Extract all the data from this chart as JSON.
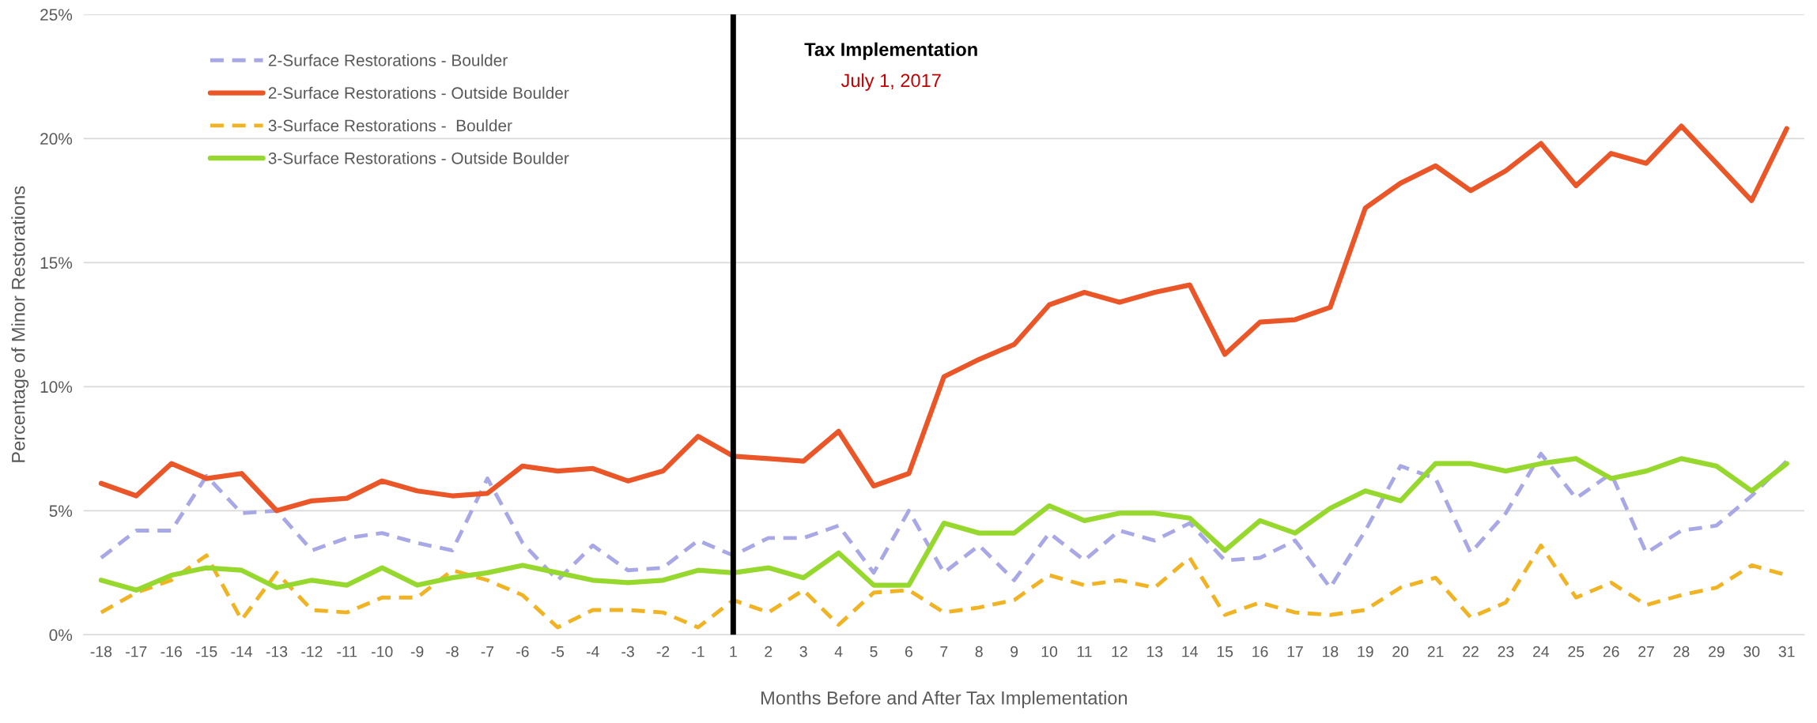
{
  "chart_data": {
    "type": "line",
    "xlabel": "Months Before and After Tax Implementation",
    "ylabel": "Percentage of Minor Restorations",
    "categories": [
      "-18",
      "-17",
      "-16",
      "-15",
      "-14",
      "-13",
      "-12",
      "-11",
      "-10",
      "-9",
      "-8",
      "-7",
      "-6",
      "-5",
      "-4",
      "-3",
      "-2",
      "-1",
      "1",
      "2",
      "3",
      "4",
      "5",
      "6",
      "7",
      "8",
      "9",
      "10",
      "11",
      "12",
      "13",
      "14",
      "15",
      "16",
      "17",
      "18",
      "19",
      "20",
      "21",
      "22",
      "23",
      "24",
      "25",
      "26",
      "27",
      "28",
      "29",
      "30",
      "31"
    ],
    "series": [
      {
        "name": "2-Surface Restorations - Boulder",
        "color": "#a9a8e6",
        "line_style": "dashed",
        "values": [
          3.1,
          4.2,
          4.2,
          6.4,
          4.9,
          5.0,
          3.4,
          3.9,
          4.1,
          3.7,
          3.4,
          6.3,
          3.7,
          2.2,
          3.6,
          2.6,
          2.7,
          3.8,
          3.2,
          3.9,
          3.9,
          4.4,
          2.5,
          5.0,
          2.5,
          3.6,
          2.2,
          4.1,
          3.0,
          4.2,
          3.8,
          4.5,
          3.0,
          3.1,
          3.8,
          1.9,
          4.2,
          6.8,
          6.3,
          3.3,
          4.9,
          7.3,
          5.5,
          6.5,
          3.3,
          4.2,
          4.4,
          5.6,
          7.0
        ]
      },
      {
        "name": "2-Surface Restorations - Outside Boulder",
        "color": "#eb5628",
        "line_style": "solid",
        "values": [
          6.1,
          5.6,
          6.9,
          6.3,
          6.5,
          5.0,
          5.4,
          5.5,
          6.2,
          5.8,
          5.6,
          5.7,
          6.8,
          6.6,
          6.7,
          6.2,
          6.6,
          8.0,
          7.2,
          7.1,
          7.0,
          8.2,
          6.0,
          6.5,
          10.4,
          11.1,
          11.7,
          13.3,
          13.8,
          13.4,
          13.8,
          14.1,
          11.3,
          12.6,
          12.7,
          13.2,
          17.2,
          18.2,
          18.9,
          17.9,
          18.7,
          19.8,
          18.1,
          19.4,
          19.0,
          20.5,
          19.0,
          17.5,
          20.4
        ]
      },
      {
        "name": "3-Surface Restorations -  Boulder",
        "color": "#f0b323",
        "line_style": "dashed",
        "values": [
          0.9,
          1.7,
          2.2,
          3.2,
          0.6,
          2.5,
          1.0,
          0.9,
          1.5,
          1.5,
          2.6,
          2.2,
          1.6,
          0.3,
          1.0,
          1.0,
          0.9,
          0.3,
          1.4,
          0.9,
          1.8,
          0.4,
          1.7,
          1.8,
          0.9,
          1.1,
          1.4,
          2.4,
          2.0,
          2.2,
          1.9,
          3.1,
          0.8,
          1.3,
          0.9,
          0.8,
          1.0,
          1.9,
          2.3,
          0.7,
          1.3,
          3.6,
          1.5,
          2.1,
          1.2,
          1.6,
          1.9,
          2.8,
          2.4
        ]
      },
      {
        "name": "3-Surface Restorations - Outside Boulder",
        "color": "#97d82e",
        "line_style": "solid",
        "values": [
          2.2,
          1.8,
          2.4,
          2.7,
          2.6,
          1.9,
          2.2,
          2.0,
          2.7,
          2.0,
          2.3,
          2.5,
          2.8,
          2.5,
          2.2,
          2.1,
          2.2,
          2.6,
          2.5,
          2.7,
          2.3,
          3.3,
          2.0,
          2.0,
          4.5,
          4.1,
          4.1,
          5.2,
          4.6,
          4.9,
          4.9,
          4.7,
          3.4,
          4.6,
          4.1,
          5.1,
          5.8,
          5.4,
          6.9,
          6.9,
          6.6,
          6.9,
          7.1,
          6.3,
          6.6,
          7.1,
          6.8,
          5.8,
          6.9
        ]
      }
    ],
    "ylim": [
      0,
      25
    ],
    "yticks": [
      {
        "value": 0,
        "label": "0%"
      },
      {
        "value": 5,
        "label": "5%"
      },
      {
        "value": 10,
        "label": "10%"
      },
      {
        "value": 15,
        "label": "15%"
      },
      {
        "value": 20,
        "label": "20%"
      },
      {
        "value": 25,
        "label": "25%"
      }
    ],
    "ref_lines": [
      {
        "axis": "x",
        "value": "1",
        "color": "#000000",
        "line_style": "solid"
      }
    ],
    "annotations": [
      "Tax Implementation",
      "July 1, 2017"
    ],
    "grid": "y",
    "legend": "top left",
    "marker": "none"
  }
}
